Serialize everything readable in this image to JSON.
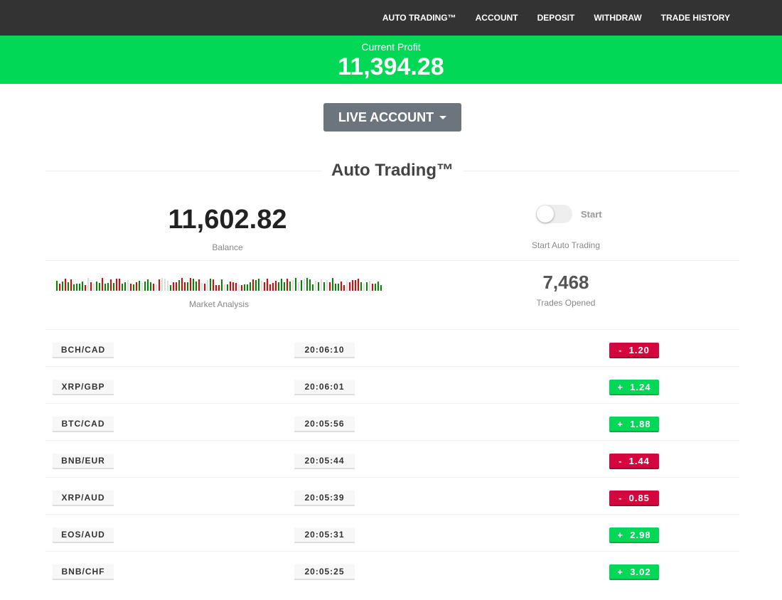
{
  "nav": {
    "items": [
      "AUTO TRADING™",
      "ACCOUNT",
      "DEPOSIT",
      "WITHDRAW",
      "TRADE HISTORY"
    ]
  },
  "profit": {
    "label": "Current Profit",
    "value": "11,394.28"
  },
  "account_button": {
    "label": "LIVE ACCOUNT"
  },
  "section": {
    "title": "Auto Trading™"
  },
  "balance": {
    "value": "11,602.82",
    "label": "Balance"
  },
  "auto_trading": {
    "toggle_label": "Start",
    "toggle_on": false,
    "caption": "Start Auto Trading"
  },
  "market_analysis": {
    "label": "Market Analysis"
  },
  "trades_opened": {
    "value": "7,468",
    "label": "Trades Opened"
  },
  "colors": {
    "green": "#00d856",
    "red": "#d5053e",
    "nav": "#333333",
    "button": "#6c757d"
  },
  "trades": [
    {
      "pair": "BCH/CAD",
      "time": "20:06:10",
      "amount": "-  1.20",
      "direction": "down"
    },
    {
      "pair": "XRP/GBP",
      "time": "20:06:01",
      "amount": "+  1.24",
      "direction": "up"
    },
    {
      "pair": "BTC/CAD",
      "time": "20:05:56",
      "amount": "+  1.88",
      "direction": "up"
    },
    {
      "pair": "BNB/EUR",
      "time": "20:05:44",
      "amount": "-  1.44",
      "direction": "down"
    },
    {
      "pair": "XRP/AUD",
      "time": "20:05:39",
      "amount": "-  0.85",
      "direction": "down"
    },
    {
      "pair": "EOS/AUD",
      "time": "20:05:31",
      "amount": "+  2.98",
      "direction": "up"
    },
    {
      "pair": "BNB/CHF",
      "time": "20:05:25",
      "amount": "+  3.02",
      "direction": "up"
    }
  ]
}
